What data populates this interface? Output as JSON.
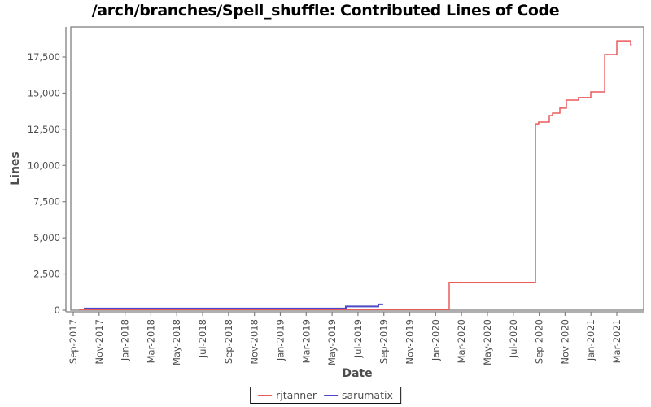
{
  "title": "/arch/branches/Spell_shuffle: Contributed Lines of Code",
  "chart_data": {
    "type": "line",
    "title": "/arch/branches/Spell_shuffle: Contributed Lines of Code",
    "xlabel": "Date",
    "ylabel": "Lines",
    "grid": false,
    "legend_position": "bottom-center",
    "frame_color": "#808080",
    "tick_label_color": "#4d4d4d",
    "ylim": [
      0,
      19580
    ],
    "y_ticks": [
      0,
      2500,
      5000,
      7500,
      10000,
      12500,
      15000,
      17500
    ],
    "x_tick_labels": [
      "Sep-2017",
      "Nov-2017",
      "Jan-2018",
      "Mar-2018",
      "May-2018",
      "Jul-2018",
      "Sep-2018",
      "Nov-2018",
      "Jan-2019",
      "Mar-2019",
      "May-2019",
      "Jul-2019",
      "Sep-2019",
      "Nov-2019",
      "Jan-2020",
      "Mar-2020",
      "May-2020",
      "Jul-2020",
      "Sep-2020",
      "Nov-2020",
      "Jan-2021",
      "Mar-2021"
    ],
    "x_tick_months": [
      0,
      2,
      4,
      6,
      8,
      10,
      12,
      14,
      16,
      18,
      20,
      22,
      24,
      26,
      28,
      30,
      32,
      34,
      36,
      38,
      40,
      42
    ],
    "x_month_origin_label": "Sep-2017",
    "series": [
      {
        "name": "rjtanner",
        "color": "#e85c5c",
        "width": 1.5,
        "step": true,
        "points_note": "[months since Sep-2017, cumulative lines] step-after",
        "points": [
          [
            0.45,
            40
          ],
          [
            29.05,
            1900
          ],
          [
            35.71,
            12880
          ],
          [
            35.96,
            13000
          ],
          [
            36.78,
            13450
          ],
          [
            37.03,
            13620
          ],
          [
            37.6,
            13960
          ],
          [
            38.1,
            14520
          ],
          [
            39.04,
            14690
          ],
          [
            39.99,
            15080
          ],
          [
            41.06,
            17670
          ],
          [
            42.0,
            18620
          ],
          [
            43.07,
            18350
          ]
        ],
        "end_month": 43.15
      },
      {
        "name": "sarumatix",
        "color": "#4a4ac8",
        "width": 2,
        "step": true,
        "points_note": "[months since Sep-2017, cumulative lines] step-after",
        "points": [
          [
            0.82,
            120
          ],
          [
            21.06,
            260
          ],
          [
            23.58,
            400
          ]
        ],
        "end_month": 23.95
      }
    ]
  },
  "legend": {
    "items": [
      {
        "label": "rjtanner",
        "color": "#e85c5c"
      },
      {
        "label": "sarumatix",
        "color": "#4a4ac8"
      }
    ]
  }
}
